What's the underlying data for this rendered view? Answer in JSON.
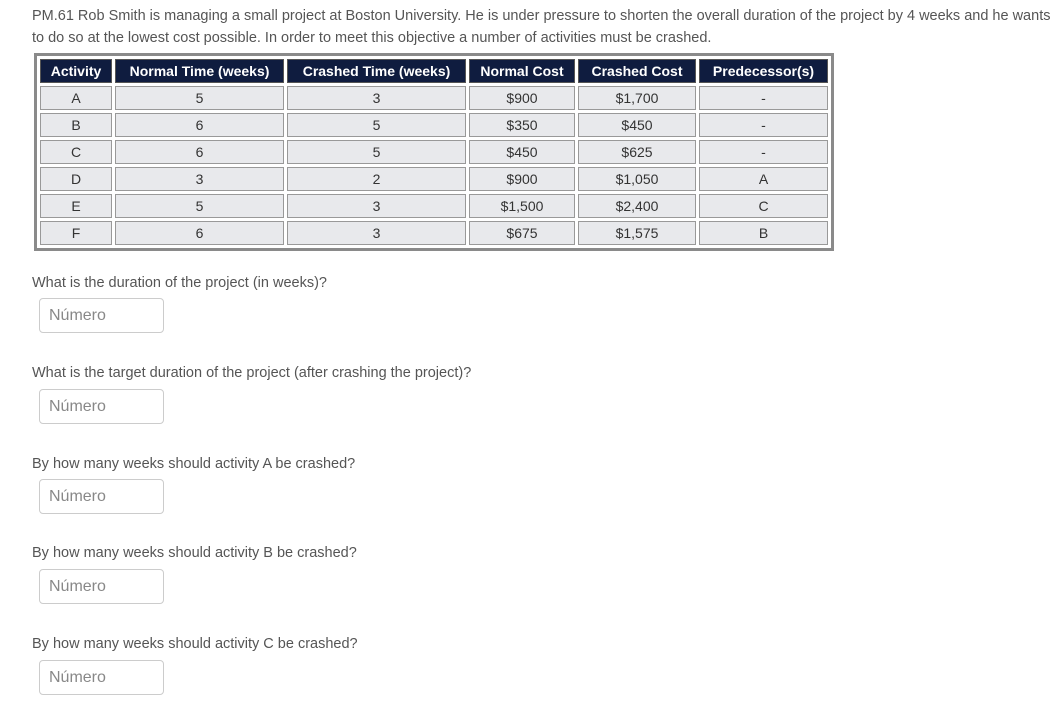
{
  "intro": "PM.61 Rob Smith is managing a small project at Boston University. He is under pressure to shorten the overall duration of the project by 4 weeks and he wants to do so at the lowest cost possible. In order to meet this objective a number of activities must be crashed.",
  "table": {
    "headers": [
      "Activity",
      "Normal Time (weeks)",
      "Crashed Time (weeks)",
      "Normal Cost",
      "Crashed Cost",
      "Predecessor(s)"
    ],
    "rows": [
      [
        "A",
        "5",
        "3",
        "$900",
        "$1,700",
        "-"
      ],
      [
        "B",
        "6",
        "5",
        "$350",
        "$450",
        "-"
      ],
      [
        "C",
        "6",
        "5",
        "$450",
        "$625",
        "-"
      ],
      [
        "D",
        "3",
        "2",
        "$900",
        "$1,050",
        "A"
      ],
      [
        "E",
        "5",
        "3",
        "$1,500",
        "$2,400",
        "C"
      ],
      [
        "F",
        "6",
        "3",
        "$675",
        "$1,575",
        "B"
      ]
    ]
  },
  "questions": [
    {
      "label": "What is the duration of the project (in weeks)?",
      "placeholder": "Número"
    },
    {
      "label": "What is the target duration of the project (after crashing the project)?",
      "placeholder": "Número"
    },
    {
      "label": "By how many weeks should activity A be crashed?",
      "placeholder": "Número"
    },
    {
      "label": "By how many weeks should activity B be crashed?",
      "placeholder": "Número"
    },
    {
      "label": "By how many weeks should activity C be crashed?",
      "placeholder": "Número"
    }
  ]
}
